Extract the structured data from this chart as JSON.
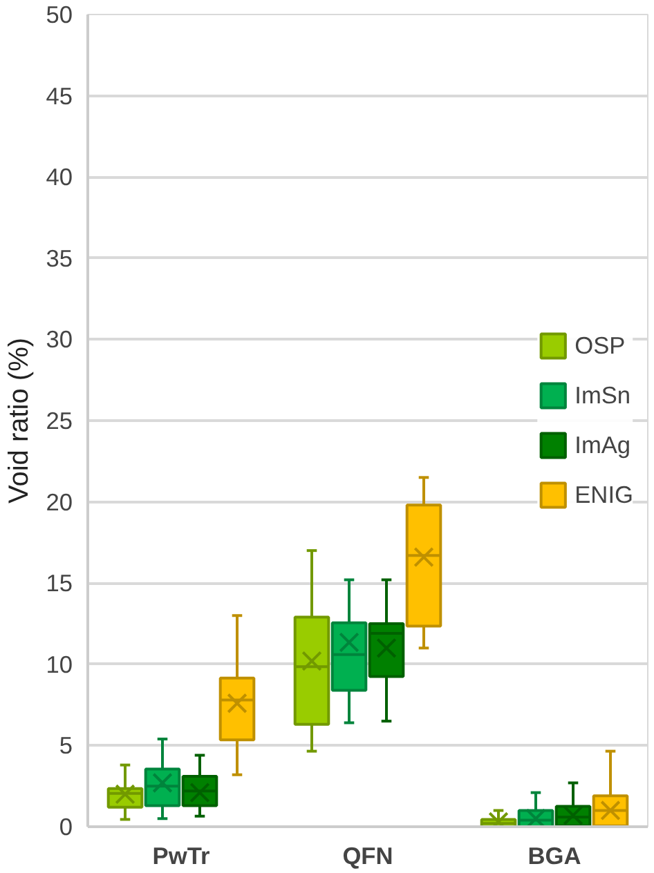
{
  "chart_data": {
    "type": "box",
    "ylabel": "Void ratio (%)",
    "categories": [
      "PwTr",
      "QFN",
      "BGA"
    ],
    "ylim": [
      0,
      50
    ],
    "yticks": [
      0,
      5,
      10,
      15,
      20,
      25,
      30,
      35,
      40,
      45,
      50
    ],
    "grid": "y",
    "legend": "right",
    "series": [
      {
        "name": "OSP",
        "color": "#99cc00",
        "boxes": [
          {
            "low": 0.45,
            "q1": 1.2,
            "median": 2.05,
            "q3": 2.35,
            "high": 3.8,
            "mean": 2.0
          },
          {
            "low": 4.65,
            "q1": 6.3,
            "median": 9.85,
            "q3": 12.9,
            "high": 17.0,
            "mean": 10.2
          },
          {
            "low": 0.0,
            "q1": 0.0,
            "median": 0.2,
            "q3": 0.45,
            "high": 1.0,
            "mean": 0.3
          }
        ]
      },
      {
        "name": "ImSn",
        "color": "#00b050",
        "boxes": [
          {
            "low": 0.5,
            "q1": 1.3,
            "median": 2.5,
            "q3": 3.55,
            "high": 5.4,
            "mean": 2.7
          },
          {
            "low": 6.4,
            "q1": 8.4,
            "median": 10.6,
            "q3": 12.55,
            "high": 15.2,
            "mean": 11.35
          },
          {
            "low": 0.0,
            "q1": 0.0,
            "median": 0.4,
            "q3": 1.0,
            "high": 2.1,
            "mean": 0.5
          }
        ]
      },
      {
        "name": "ImAg",
        "color": "#008000",
        "boxes": [
          {
            "low": 0.65,
            "q1": 1.3,
            "median": 2.2,
            "q3": 3.1,
            "high": 4.4,
            "mean": 2.1
          },
          {
            "low": 6.5,
            "q1": 9.25,
            "median": 11.9,
            "q3": 12.5,
            "high": 15.2,
            "mean": 11.0
          },
          {
            "low": 0.05,
            "q1": 0.05,
            "median": 0.6,
            "q3": 1.25,
            "high": 2.7,
            "mean": 0.7
          }
        ]
      },
      {
        "name": "ENIG",
        "color": "#ffc000",
        "boxes": [
          {
            "low": 3.2,
            "q1": 5.35,
            "median": 7.8,
            "q3": 9.15,
            "high": 13.0,
            "mean": 7.6
          },
          {
            "low": 11.0,
            "q1": 12.35,
            "median": 16.7,
            "q3": 19.8,
            "high": 21.5,
            "mean": 16.6
          },
          {
            "low": 0.05,
            "q1": 0.05,
            "median": 1.0,
            "q3": 1.9,
            "high": 4.65,
            "mean": 1.0
          }
        ]
      }
    ]
  }
}
